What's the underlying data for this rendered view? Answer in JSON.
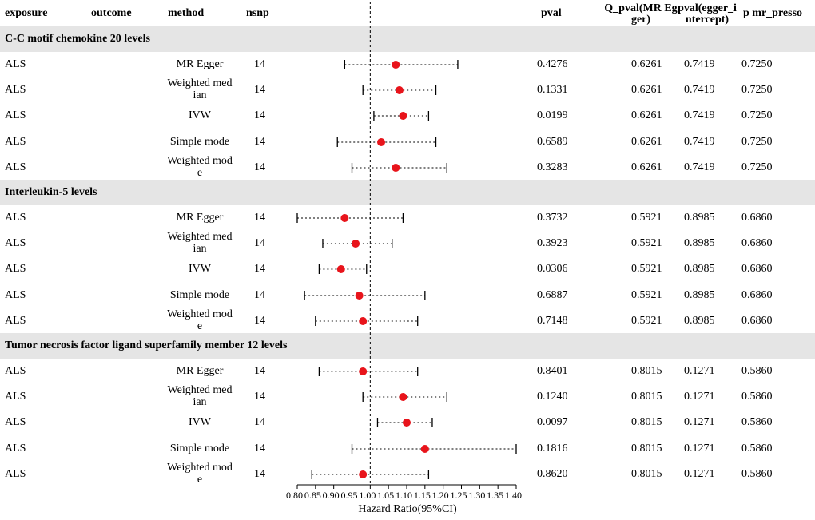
{
  "columns": {
    "exposure": "exposure",
    "outcome": "outcome",
    "method": "method",
    "nsnp": "nsnp",
    "pval": "pval",
    "q_pval_l1": "Q_pval(MR Eg",
    "q_pval_l2": "ger)",
    "egger_l1": "pval(egger_i",
    "egger_l2": "ntercept)",
    "presso": "p mr_presso"
  },
  "colors": {
    "band": "#e5e5e5",
    "point": "#e8141b",
    "line": "#000000"
  },
  "chart_data": {
    "type": "forest",
    "xlabel": "Hazard Ratio(95%CI)",
    "xlim": [
      0.8,
      1.4
    ],
    "ticks": [
      "0.80",
      "0.85",
      "0.90",
      "0.95",
      "1.00",
      "1.05",
      "1.10",
      "1.15",
      "1.20",
      "1.25",
      "1.30",
      "1.35",
      "1.40"
    ],
    "reference_line": 1.0,
    "groups": [
      {
        "title": "C-C motif chemokine 20 levels",
        "rows": [
          {
            "exposure": "ALS",
            "method_l1": "MR Egger",
            "method_l2": "",
            "nsnp": "14",
            "hr": 1.07,
            "lo": 0.93,
            "hi": 1.24,
            "pval": "0.4276",
            "q_pval": "0.6261",
            "egger": "0.7419",
            "presso": "0.7250"
          },
          {
            "exposure": "ALS",
            "method_l1": "Weighted med",
            "method_l2": "ian",
            "nsnp": "14",
            "hr": 1.08,
            "lo": 0.98,
            "hi": 1.18,
            "pval": "0.1331",
            "q_pval": "0.6261",
            "egger": "0.7419",
            "presso": "0.7250"
          },
          {
            "exposure": "ALS",
            "method_l1": "IVW",
            "method_l2": "",
            "nsnp": "14",
            "hr": 1.09,
            "lo": 1.01,
            "hi": 1.16,
            "pval": "0.0199",
            "q_pval": "0.6261",
            "egger": "0.7419",
            "presso": "0.7250"
          },
          {
            "exposure": "ALS",
            "method_l1": "Simple mode",
            "method_l2": "",
            "nsnp": "14",
            "hr": 1.03,
            "lo": 0.91,
            "hi": 1.18,
            "pval": "0.6589",
            "q_pval": "0.6261",
            "egger": "0.7419",
            "presso": "0.7250"
          },
          {
            "exposure": "ALS",
            "method_l1": "Weighted mod",
            "method_l2": "e",
            "nsnp": "14",
            "hr": 1.07,
            "lo": 0.95,
            "hi": 1.21,
            "pval": "0.3283",
            "q_pval": "0.6261",
            "egger": "0.7419",
            "presso": "0.7250"
          }
        ]
      },
      {
        "title": "Interleukin-5 levels",
        "rows": [
          {
            "exposure": "ALS",
            "method_l1": "MR Egger",
            "method_l2": "",
            "nsnp": "14",
            "hr": 0.93,
            "lo": 0.8,
            "hi": 1.09,
            "pval": "0.3732",
            "q_pval": "0.5921",
            "egger": "0.8985",
            "presso": "0.6860"
          },
          {
            "exposure": "ALS",
            "method_l1": "Weighted med",
            "method_l2": "ian",
            "nsnp": "14",
            "hr": 0.96,
            "lo": 0.87,
            "hi": 1.06,
            "pval": "0.3923",
            "q_pval": "0.5921",
            "egger": "0.8985",
            "presso": "0.6860"
          },
          {
            "exposure": "ALS",
            "method_l1": "IVW",
            "method_l2": "",
            "nsnp": "14",
            "hr": 0.92,
            "lo": 0.86,
            "hi": 0.99,
            "pval": "0.0306",
            "q_pval": "0.5921",
            "egger": "0.8985",
            "presso": "0.6860"
          },
          {
            "exposure": "ALS",
            "method_l1": "Simple mode",
            "method_l2": "",
            "nsnp": "14",
            "hr": 0.97,
            "lo": 0.82,
            "hi": 1.15,
            "pval": "0.6887",
            "q_pval": "0.5921",
            "egger": "0.8985",
            "presso": "0.6860"
          },
          {
            "exposure": "ALS",
            "method_l1": "Weighted mod",
            "method_l2": "e",
            "nsnp": "14",
            "hr": 0.98,
            "lo": 0.85,
            "hi": 1.13,
            "pval": "0.7148",
            "q_pval": "0.5921",
            "egger": "0.8985",
            "presso": "0.6860"
          }
        ]
      },
      {
        "title": "Tumor necrosis factor ligand superfamily member 12 levels",
        "rows": [
          {
            "exposure": "ALS",
            "method_l1": "MR Egger",
            "method_l2": "",
            "nsnp": "14",
            "hr": 0.98,
            "lo": 0.86,
            "hi": 1.13,
            "pval": "0.8401",
            "q_pval": "0.8015",
            "egger": "0.1271",
            "presso": "0.5860"
          },
          {
            "exposure": "ALS",
            "method_l1": "Weighted med",
            "method_l2": "ian",
            "nsnp": "14",
            "hr": 1.09,
            "lo": 0.98,
            "hi": 1.21,
            "pval": "0.1240",
            "q_pval": "0.8015",
            "egger": "0.1271",
            "presso": "0.5860"
          },
          {
            "exposure": "ALS",
            "method_l1": "IVW",
            "method_l2": "",
            "nsnp": "14",
            "hr": 1.1,
            "lo": 1.02,
            "hi": 1.17,
            "pval": "0.0097",
            "q_pval": "0.8015",
            "egger": "0.1271",
            "presso": "0.5860"
          },
          {
            "exposure": "ALS",
            "method_l1": "Simple mode",
            "method_l2": "",
            "nsnp": "14",
            "hr": 1.15,
            "lo": 0.95,
            "hi": 1.4,
            "pval": "0.1816",
            "q_pval": "0.8015",
            "egger": "0.1271",
            "presso": "0.5860"
          },
          {
            "exposure": "ALS",
            "method_l1": "Weighted mod",
            "method_l2": "e",
            "nsnp": "14",
            "hr": 0.98,
            "lo": 0.84,
            "hi": 1.16,
            "pval": "0.8620",
            "q_pval": "0.8015",
            "egger": "0.1271",
            "presso": "0.5860"
          }
        ]
      }
    ]
  }
}
